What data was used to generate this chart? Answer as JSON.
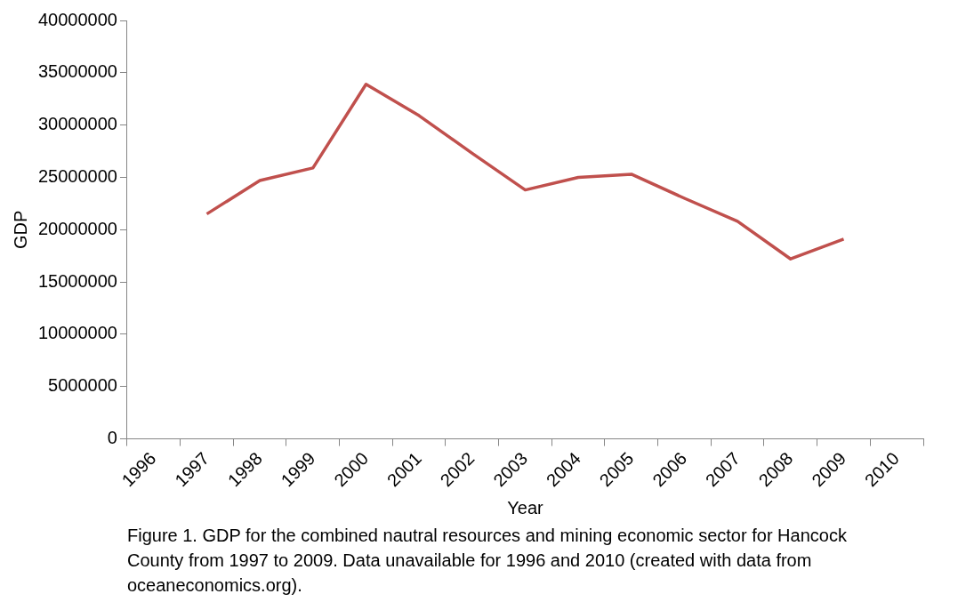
{
  "chart_data": {
    "type": "line",
    "xlabel": "Year",
    "ylabel": "GDP",
    "categories": [
      "1996",
      "1997",
      "1998",
      "1999",
      "2000",
      "2001",
      "2002",
      "2003",
      "2004",
      "2005",
      "2006",
      "2007",
      "2008",
      "2009",
      "2010"
    ],
    "series": [
      {
        "color": "#c0504d",
        "values": [
          null,
          21500000,
          24700000,
          25900000,
          33900000,
          30900000,
          27300000,
          23800000,
          25000000,
          25300000,
          23000000,
          20800000,
          17200000,
          19100000,
          null
        ]
      }
    ],
    "ylim": [
      0,
      40000000
    ],
    "yticks": [
      0,
      5000000,
      10000000,
      15000000,
      20000000,
      25000000,
      30000000,
      35000000,
      40000000
    ],
    "grid": false,
    "legend": false,
    "marker": "none",
    "line_style": "solid",
    "annotations": [
      "Figure 1. GDP for the combined nautral resources and mining economic sector for Hancock County from 1997 to 2009. Data unavailable for 1996 and 2010 (created with data from oceaneconomics.org)."
    ]
  }
}
